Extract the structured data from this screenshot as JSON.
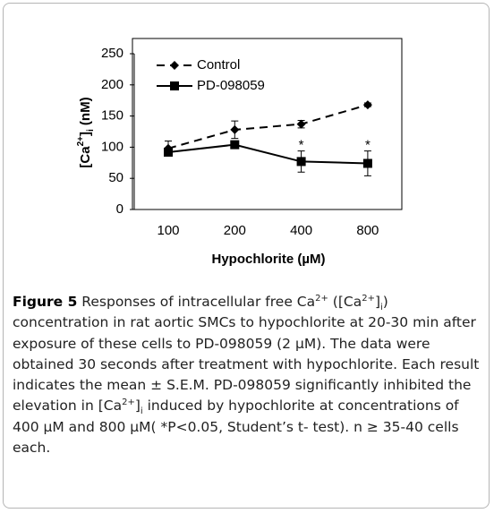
{
  "chart_data": {
    "type": "line",
    "categories": [
      "100",
      "200",
      "400",
      "800"
    ],
    "series": [
      {
        "name": "Control",
        "color": "#000000",
        "dash": true,
        "marker": "diamond",
        "values": [
          98,
          128,
          137,
          168
        ],
        "errors": [
          12,
          14,
          6,
          3
        ]
      },
      {
        "name": "PD-098059",
        "color": "#000000",
        "dash": false,
        "marker": "square",
        "values": [
          92,
          104,
          77,
          74
        ],
        "errors": [
          5,
          5,
          17,
          20
        ]
      }
    ],
    "ylim": [
      0,
      250
    ],
    "yticks": [
      0,
      50,
      100,
      150,
      200,
      250
    ],
    "x_label": "Hypochlorite (µM)",
    "y_label": [
      {
        "text": "[Ca"
      },
      {
        "text": "2+",
        "sup": true
      },
      {
        "text": "]"
      },
      {
        "text": "i",
        "sub": true
      },
      {
        "text": " (nM)"
      }
    ],
    "annotations": [
      {
        "text": "*",
        "category": "400"
      },
      {
        "text": "*",
        "category": "800"
      }
    ],
    "caption": [
      {
        "text": "Figure 5",
        "bold": true
      },
      {
        "text": " Responses of intracellular free Ca"
      },
      {
        "text": "2+",
        "sup": true
      },
      {
        "text": " ([Ca"
      },
      {
        "text": "2+",
        "sup": true
      },
      {
        "text": "]"
      },
      {
        "text": "i",
        "sub": true
      },
      {
        "text": ") concentration in rat aortic SMCs to hypochlorite at 20-30 min after exposure of these cells to PD-098059 (2 µM). The data were obtained 30 seconds after treatment with hypochlorite. Each result indicates the mean ± S.E.M. PD-098059 significantly inhibited the elevation in [Ca"
      },
      {
        "text": "2+",
        "sup": true
      },
      {
        "text": "]"
      },
      {
        "text": "i",
        "sub": true
      },
      {
        "text": " induced by hypochlorite at concentrations of 400 µM and 800 µM( *P<0.05, Student’s t- test). n ≥ 35-40 cells each."
      }
    ]
  }
}
